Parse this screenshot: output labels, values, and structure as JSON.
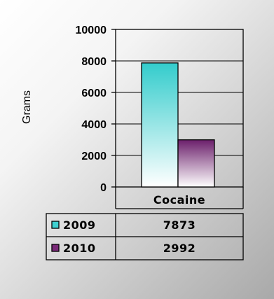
{
  "chart_data": {
    "type": "bar",
    "categories": [
      "Cocaine"
    ],
    "series": [
      {
        "name": "2009",
        "values": [
          7873
        ],
        "color": "#3fd1d1"
      },
      {
        "name": "2010",
        "values": [
          2992
        ],
        "color": "#7a2a78"
      }
    ],
    "title": "",
    "xlabel": "",
    "ylabel": "Grams",
    "ylim": [
      0,
      10000
    ],
    "yticks": [
      0,
      2000,
      4000,
      6000,
      8000,
      10000
    ],
    "grid": "horizontal",
    "legend": "data-table",
    "data_table": {
      "rows": [
        {
          "series": "2009",
          "value": "7873"
        },
        {
          "series": "2010",
          "value": "2992"
        }
      ]
    }
  }
}
